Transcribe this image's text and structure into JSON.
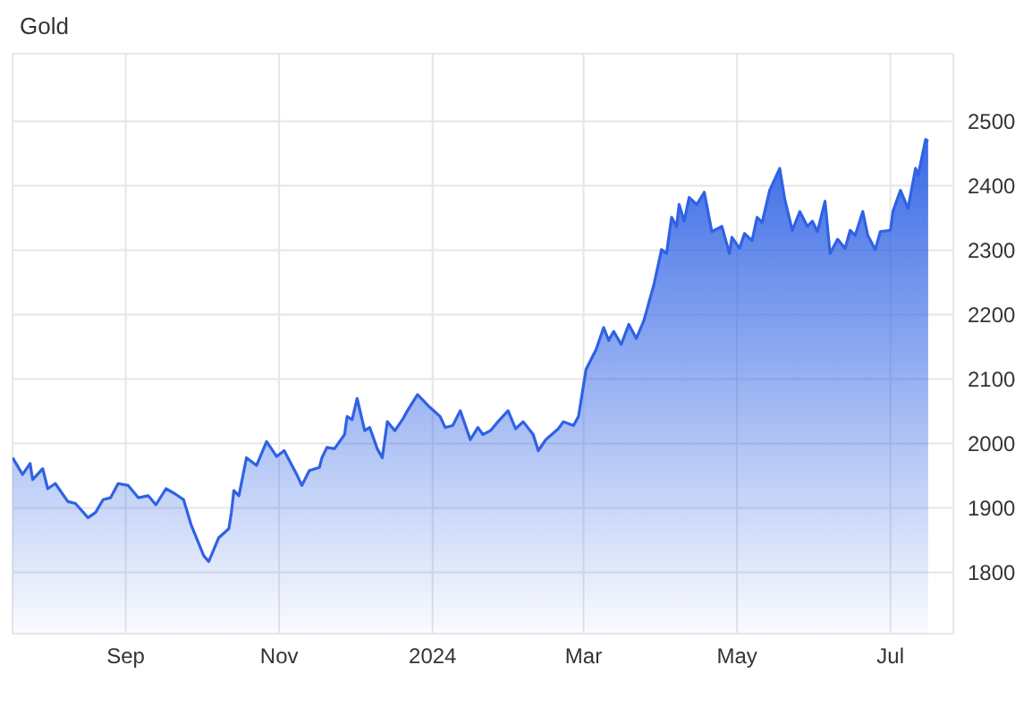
{
  "chart_data": {
    "type": "area",
    "title": "Gold",
    "x": [
      "2023-07-18",
      "2023-07-22",
      "2023-07-25",
      "2023-07-26",
      "2023-07-30",
      "2023-08-01",
      "2023-08-04",
      "2023-08-09",
      "2023-08-12",
      "2023-08-17",
      "2023-08-20",
      "2023-08-23",
      "2023-08-26",
      "2023-08-29",
      "2023-09-02",
      "2023-09-06",
      "2023-09-10",
      "2023-09-13",
      "2023-09-17",
      "2023-09-21",
      "2023-09-24",
      "2023-09-27",
      "2023-10-02",
      "2023-10-04",
      "2023-10-08",
      "2023-10-12",
      "2023-10-13",
      "2023-10-14",
      "2023-10-16",
      "2023-10-19",
      "2023-10-23",
      "2023-10-27",
      "2023-10-31",
      "2023-11-03",
      "2023-11-08",
      "2023-11-10",
      "2023-11-13",
      "2023-11-17",
      "2023-11-18",
      "2023-11-20",
      "2023-11-23",
      "2023-11-27",
      "2023-11-28",
      "2023-11-30",
      "2023-12-02",
      "2023-12-05",
      "2023-12-07",
      "2023-12-10",
      "2023-12-12",
      "2023-12-14",
      "2023-12-17",
      "2023-12-20",
      "2023-12-22",
      "2023-12-26",
      "2023-12-31",
      "2024-01-04",
      "2024-01-06",
      "2024-01-09",
      "2024-01-12",
      "2024-01-16",
      "2024-01-19",
      "2024-01-21",
      "2024-01-24",
      "2024-01-27",
      "2024-01-31",
      "2024-02-03",
      "2024-02-06",
      "2024-02-10",
      "2024-02-12",
      "2024-02-15",
      "2024-02-20",
      "2024-02-22",
      "2024-02-26",
      "2024-02-28",
      "2024-03-02",
      "2024-03-06",
      "2024-03-09",
      "2024-03-11",
      "2024-03-13",
      "2024-03-16",
      "2024-03-19",
      "2024-03-22",
      "2024-03-25",
      "2024-03-29",
      "2024-04-01",
      "2024-04-03",
      "2024-04-05",
      "2024-04-07",
      "2024-04-08",
      "2024-04-10",
      "2024-04-12",
      "2024-04-15",
      "2024-04-18",
      "2024-04-21",
      "2024-04-25",
      "2024-04-28",
      "2024-04-29",
      "2024-05-02",
      "2024-05-04",
      "2024-05-07",
      "2024-05-09",
      "2024-05-11",
      "2024-05-14",
      "2024-05-18",
      "2024-05-20",
      "2024-05-23",
      "2024-05-26",
      "2024-05-29",
      "2024-05-31",
      "2024-06-02",
      "2024-06-05",
      "2024-06-07",
      "2024-06-10",
      "2024-06-13",
      "2024-06-15",
      "2024-06-17",
      "2024-06-20",
      "2024-06-22",
      "2024-06-25",
      "2024-06-27",
      "2024-07-01",
      "2024-07-02",
      "2024-07-05",
      "2024-07-08",
      "2024-07-11",
      "2024-07-12",
      "2024-07-15",
      "2024-07-16"
    ],
    "series": [
      {
        "color": "#2f62e4",
        "values": [
          1978,
          1952,
          1969,
          1944,
          1961,
          1930,
          1938,
          1910,
          1907,
          1885,
          1893,
          1913,
          1916,
          1938,
          1935,
          1916,
          1919,
          1905,
          1930,
          1921,
          1913,
          1874,
          1826,
          1817,
          1854,
          1868,
          1893,
          1927,
          1919,
          1978,
          1966,
          2003,
          1980,
          1989,
          1952,
          1935,
          1958,
          1963,
          1978,
          1994,
          1992,
          2014,
          2042,
          2037,
          2070,
          2020,
          2025,
          1992,
          1978,
          2034,
          2020,
          2037,
          2051,
          2076,
          2056,
          2042,
          2025,
          2028,
          2051,
          2006,
          2025,
          2014,
          2020,
          2034,
          2051,
          2023,
          2034,
          2014,
          1989,
          2006,
          2023,
          2034,
          2028,
          2042,
          2115,
          2146,
          2180,
          2160,
          2174,
          2154,
          2185,
          2163,
          2191,
          2247,
          2301,
          2295,
          2351,
          2337,
          2371,
          2345,
          2382,
          2371,
          2390,
          2329,
          2337,
          2295,
          2320,
          2303,
          2326,
          2315,
          2351,
          2343,
          2393,
          2427,
          2379,
          2331,
          2360,
          2337,
          2345,
          2329,
          2376,
          2295,
          2317,
          2303,
          2331,
          2323,
          2360,
          2323,
          2301,
          2329,
          2331,
          2360,
          2393,
          2365,
          2427,
          2416,
          2472,
          2469
        ]
      }
    ],
    "xlim": [
      "2023-07-18",
      "2024-07-26"
    ],
    "xticks": [
      {
        "value": "2023-09-01",
        "label": "Sep"
      },
      {
        "value": "2023-11-01",
        "label": "Nov"
      },
      {
        "value": "2024-01-01",
        "label": "2024"
      },
      {
        "value": "2024-03-01",
        "label": "Mar"
      },
      {
        "value": "2024-05-01",
        "label": "May"
      },
      {
        "value": "2024-07-01",
        "label": "Jul"
      }
    ],
    "ylim": [
      1705,
      2605
    ],
    "yticks": [
      1800,
      1900,
      2000,
      2100,
      2200,
      2300,
      2400,
      2500
    ],
    "grid": true
  }
}
